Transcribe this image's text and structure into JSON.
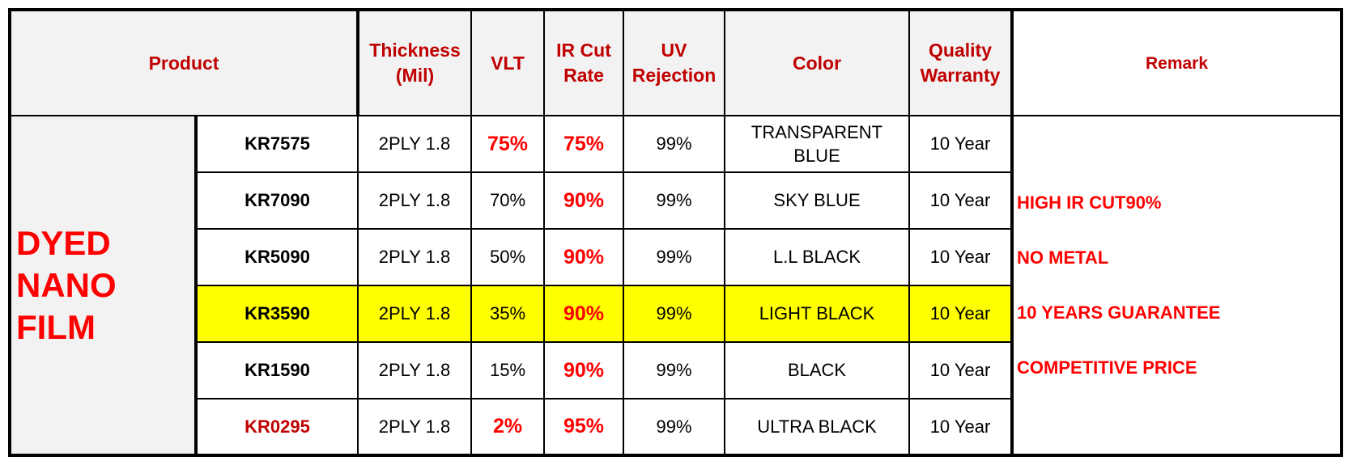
{
  "headers": {
    "product": "Product",
    "thickness": "Thickness (Mil)",
    "vlt": "VLT",
    "ir_cut": "IR Cut Rate",
    "uv": "UV Rejection",
    "color": "Color",
    "warranty": "Quality Warranty",
    "remark": "Remark"
  },
  "group": "DYED NANO FILM",
  "rows": [
    {
      "model": "KR7575",
      "thickness": "2PLY 1.8",
      "vlt": "75%",
      "ir": "75%",
      "uv": "99%",
      "color": "TRANSPARENT BLUE",
      "warranty": "10 Year"
    },
    {
      "model": "KR7090",
      "thickness": "2PLY 1.8",
      "vlt": "70%",
      "ir": "90%",
      "uv": "99%",
      "color": "SKY BLUE",
      "warranty": "10 Year"
    },
    {
      "model": "KR5090",
      "thickness": "2PLY 1.8",
      "vlt": "50%",
      "ir": "90%",
      "uv": "99%",
      "color": "L.L BLACK",
      "warranty": "10 Year"
    },
    {
      "model": "KR3590",
      "thickness": "2PLY 1.8",
      "vlt": "35%",
      "ir": "90%",
      "uv": "99%",
      "color": "LIGHT BLACK",
      "warranty": "10 Year"
    },
    {
      "model": "KR1590",
      "thickness": "2PLY 1.8",
      "vlt": "15%",
      "ir": "90%",
      "uv": "99%",
      "color": "BLACK",
      "warranty": "10 Year"
    },
    {
      "model": "KR0295",
      "thickness": "2PLY 1.8",
      "vlt": "2%",
      "ir": "95%",
      "uv": "99%",
      "color": "ULTRA BLACK",
      "warranty": "10 Year"
    }
  ],
  "remarks": [
    "HIGH IR CUT90%",
    "NO METAL",
    "10 YEARS GUARANTEE",
    "COMPETITIVE PRICE"
  ],
  "colors": {
    "header_text": "#c00000",
    "accent_red": "#ff0000",
    "highlight_row": "#ffff00",
    "header_bg": "#f2f2f2"
  }
}
